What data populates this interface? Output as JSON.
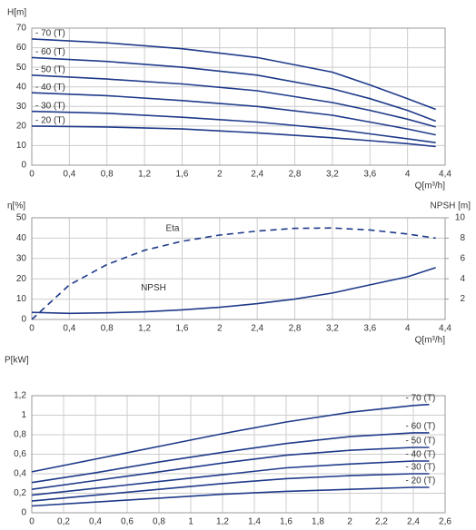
{
  "chart_data": [
    {
      "type": "line",
      "ylabel": "H[m]",
      "xlabel": "Q[m³/h]",
      "x": [
        0,
        0.8,
        1.6,
        2.4,
        3.2,
        3.6,
        4.0,
        4.3
      ],
      "series": [
        {
          "name": "- 70 (T)",
          "color": "#1e3a8a",
          "values": [
            64.5,
            62.5,
            59.5,
            55,
            47.5,
            41,
            34,
            28.5
          ]
        },
        {
          "name": "- 60 (T)",
          "color": "#1e3a8a",
          "values": [
            55,
            53,
            50,
            46,
            39,
            34,
            28,
            22.5
          ]
        },
        {
          "name": "- 50 (T)",
          "color": "#1e3a8a",
          "values": [
            46,
            44,
            41.5,
            38,
            32,
            28,
            23.5,
            19.5
          ]
        },
        {
          "name": "- 40 (T)",
          "color": "#1e3a8a",
          "values": [
            37,
            35.5,
            33,
            30,
            25.5,
            22,
            18.5,
            15.5
          ]
        },
        {
          "name": "- 30 (T)",
          "color": "#1e3a8a",
          "values": [
            27.5,
            26.5,
            24.5,
            22,
            18.5,
            16,
            13.5,
            11.5
          ]
        },
        {
          "name": "- 20 (T)",
          "color": "#1e3a8a",
          "values": [
            20,
            19.5,
            18.5,
            16.5,
            14,
            12.5,
            11,
            9.5
          ]
        }
      ],
      "xlim": [
        0,
        4.4
      ],
      "xticks": [
        0,
        {
          "value": 0.4,
          "label": "0,4"
        },
        {
          "value": 0.8,
          "label": "0,8"
        },
        {
          "value": 1.2,
          "label": "1,2"
        },
        {
          "value": 1.6,
          "label": "1,6"
        },
        2,
        {
          "value": 2.4,
          "label": "2,4"
        },
        {
          "value": 2.8,
          "label": "2,8"
        },
        {
          "value": 3.2,
          "label": "3,2"
        },
        {
          "value": 3.6,
          "label": "3,6"
        },
        4,
        {
          "value": 4.4,
          "label": "4,4"
        }
      ],
      "ylim": [
        0,
        70
      ],
      "yticks": [
        0,
        10,
        20,
        30,
        40,
        50,
        60,
        70
      ],
      "grid": true
    },
    {
      "type": "line",
      "ylabel": "η[%]",
      "y2label": "NPSH [m]",
      "xlabel": "Q[m³/h]",
      "x": [
        0,
        0.4,
        0.8,
        1.2,
        1.6,
        2,
        2.4,
        2.8,
        3.2,
        3.6,
        4.0,
        4.3
      ],
      "series": [
        {
          "name": "Eta",
          "color": "#1e3a8a",
          "linestyle": "dashed",
          "values": [
            0,
            17,
            27,
            34,
            38.5,
            41.5,
            43.5,
            44.8,
            45,
            44,
            42,
            40
          ]
        },
        {
          "name": "NPSH",
          "color": "#1e3a8a",
          "axis": "y2",
          "values": [
            0.7,
            0.6,
            0.65,
            0.75,
            0.95,
            1.2,
            1.55,
            2.0,
            2.6,
            3.4,
            4.2,
            5.1
          ]
        }
      ],
      "xlim": [
        0,
        4.4
      ],
      "xticks": [
        0,
        {
          "value": 0.4,
          "label": "0,4"
        },
        {
          "value": 0.8,
          "label": "0,8"
        },
        {
          "value": 1.2,
          "label": "1,2"
        },
        {
          "value": 1.6,
          "label": "1,6"
        },
        2,
        {
          "value": 2.4,
          "label": "2,4"
        },
        {
          "value": 2.8,
          "label": "2,8"
        },
        {
          "value": 3.2,
          "label": "3,2"
        },
        {
          "value": 3.6,
          "label": "3,6"
        },
        4,
        {
          "value": 4.4,
          "label": "4,4"
        }
      ],
      "ylim": [
        0,
        50
      ],
      "yticks": [
        0,
        10,
        20,
        30,
        40,
        50
      ],
      "y2lim": [
        0,
        10
      ],
      "y2ticks": [
        2,
        4,
        6,
        8,
        10
      ],
      "grid": true
    },
    {
      "type": "line",
      "ylabel": "P[kW]",
      "x": [
        0,
        0.4,
        0.8,
        1.2,
        1.6,
        2.0,
        2.4,
        2.5
      ],
      "series": [
        {
          "name": "- 70 (T)",
          "color": "#1e3a8a",
          "values": [
            0.42,
            0.55,
            0.68,
            0.81,
            0.93,
            1.03,
            1.1,
            1.11
          ]
        },
        {
          "name": "- 60 (T)",
          "color": "#1e3a8a",
          "values": [
            0.31,
            0.41,
            0.52,
            0.62,
            0.71,
            0.78,
            0.82,
            0.82
          ]
        },
        {
          "name": "- 50 (T)",
          "color": "#1e3a8a",
          "values": [
            0.24,
            0.33,
            0.42,
            0.51,
            0.59,
            0.64,
            0.67,
            0.67
          ]
        },
        {
          "name": "- 40 (T)",
          "color": "#1e3a8a",
          "values": [
            0.18,
            0.25,
            0.32,
            0.39,
            0.46,
            0.5,
            0.53,
            0.53
          ]
        },
        {
          "name": "- 30 (T)",
          "color": "#1e3a8a",
          "values": [
            0.12,
            0.18,
            0.24,
            0.3,
            0.35,
            0.38,
            0.4,
            0.4
          ]
        },
        {
          "name": "- 20 (T)",
          "color": "#1e3a8a",
          "values": [
            0.07,
            0.11,
            0.15,
            0.19,
            0.22,
            0.24,
            0.26,
            0.26
          ]
        }
      ],
      "xlim": [
        0,
        2.6
      ],
      "xticks": [
        0,
        {
          "value": 0.2,
          "label": "0,2"
        },
        {
          "value": 0.4,
          "label": "0,4"
        },
        {
          "value": 0.6,
          "label": "0,6"
        },
        {
          "value": 0.8,
          "label": "0,8"
        },
        1,
        {
          "value": 1.2,
          "label": "1,2"
        },
        {
          "value": 1.4,
          "label": "1,4"
        },
        {
          "value": 1.6,
          "label": "1,6"
        },
        {
          "value": 1.8,
          "label": "1,8"
        },
        2,
        {
          "value": 2.2,
          "label": "2,2"
        },
        {
          "value": 2.4,
          "label": "2,4"
        },
        {
          "value": 2.6,
          "label": "2,6"
        }
      ],
      "ylim": [
        0,
        1.2
      ],
      "yticks": [
        0,
        {
          "value": 0.2,
          "label": "0,2"
        },
        {
          "value": 0.4,
          "label": "0,4"
        },
        {
          "value": 0.6,
          "label": "0,6"
        },
        {
          "value": 0.8,
          "label": "0,8"
        },
        1,
        {
          "value": 1.2,
          "label": "1,2"
        }
      ],
      "grid": true
    }
  ]
}
